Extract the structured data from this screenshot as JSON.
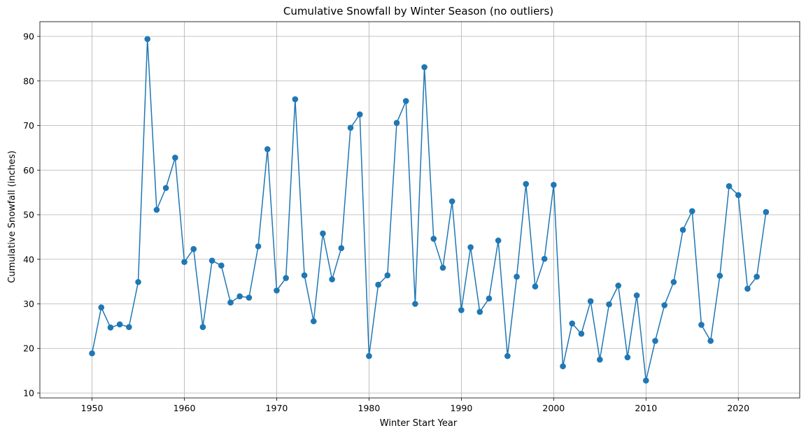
{
  "chart_data": {
    "type": "line",
    "title": "Cumulative Snowfall by Winter Season (no outliers)",
    "xlabel": "Winter Start Year",
    "ylabel": "Cumulative Snowfall (inches)",
    "xlim": [
      1944.35,
      2026.65
    ],
    "ylim": [
      8.9,
      93.3
    ],
    "xticks": [
      1950,
      1960,
      1970,
      1980,
      1990,
      2000,
      2010,
      2020
    ],
    "yticks": [
      10,
      20,
      30,
      40,
      50,
      60,
      70,
      80,
      90
    ],
    "grid": true,
    "marker": "circle",
    "color": "#1f77b4",
    "x": [
      1950,
      1951,
      1952,
      1953,
      1954,
      1955,
      1956,
      1957,
      1958,
      1959,
      1960,
      1961,
      1962,
      1963,
      1964,
      1965,
      1966,
      1967,
      1968,
      1969,
      1970,
      1971,
      1972,
      1973,
      1974,
      1975,
      1976,
      1977,
      1978,
      1979,
      1980,
      1981,
      1982,
      1983,
      1984,
      1985,
      1986,
      1987,
      1988,
      1989,
      1990,
      1991,
      1992,
      1993,
      1994,
      1995,
      1996,
      1997,
      1998,
      1999,
      2000,
      2001,
      2002,
      2003,
      2004,
      2005,
      2006,
      2007,
      2008,
      2009,
      2010,
      2011,
      2012,
      2013,
      2014,
      2015,
      2016,
      2017,
      2018,
      2019,
      2020,
      2021,
      2022,
      2023
    ],
    "values": [
      18.9,
      29.2,
      24.7,
      25.4,
      24.8,
      34.9,
      89.4,
      51.1,
      56.0,
      62.8,
      39.4,
      42.3,
      24.8,
      39.7,
      38.6,
      30.3,
      31.7,
      31.4,
      42.9,
      64.7,
      33.0,
      35.8,
      75.9,
      36.4,
      26.1,
      45.8,
      35.5,
      42.5,
      69.5,
      72.5,
      18.3,
      34.3,
      36.4,
      70.6,
      75.5,
      30.0,
      83.1,
      44.6,
      38.1,
      53.0,
      28.6,
      42.7,
      28.2,
      31.2,
      44.2,
      18.3,
      36.1,
      56.9,
      33.9,
      40.1,
      56.7,
      16.0,
      25.6,
      23.3,
      30.6,
      17.5,
      29.9,
      34.1,
      18.0,
      31.9,
      12.8,
      21.7,
      29.7,
      34.9,
      46.6,
      50.8,
      25.3,
      21.7,
      36.3,
      56.4,
      54.4,
      33.4,
      36.1,
      50.6
    ]
  }
}
